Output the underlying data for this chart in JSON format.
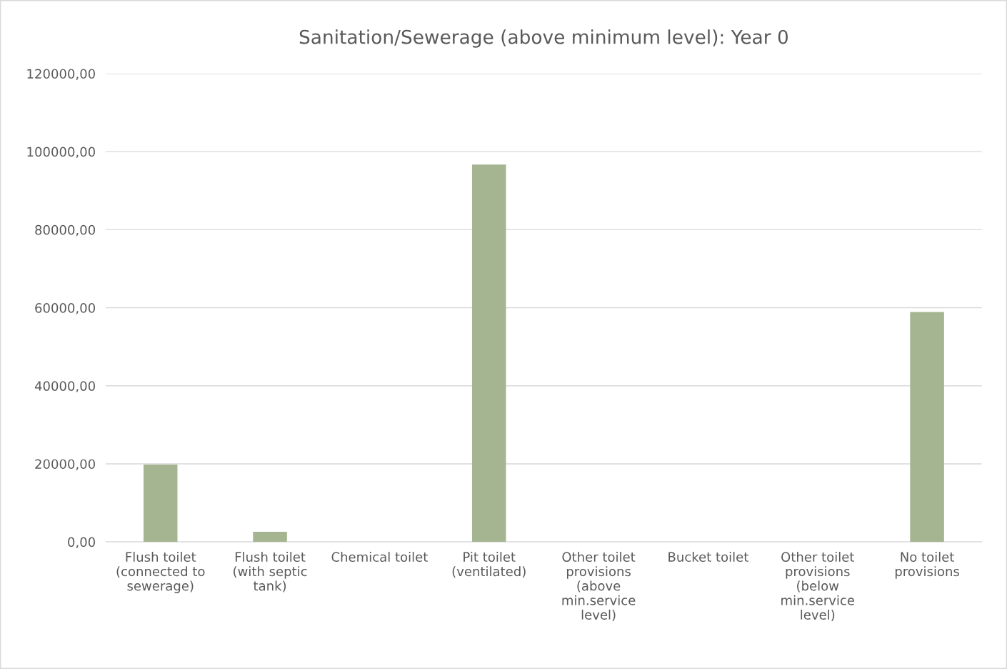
{
  "chart_data": {
    "type": "bar",
    "title": "Sanitation/Sewerage (above minimum level): Year 0",
    "categories": [
      "Flush toilet\n(connected to\nsewerage)",
      "Flush toilet\n(with septic\ntank)",
      "Chemical toilet",
      "Pit toilet\n(ventilated)",
      "Other toilet\nprovisions\n(above\nmin.service\nlevel)",
      "Bucket toilet",
      "Other toilet\nprovisions\n(below\nmin.service\nlevel)",
      "No toilet\nprovisions"
    ],
    "values": [
      19800,
      2600,
      0,
      96700,
      0,
      0,
      0,
      58900
    ],
    "color": "#a5b592",
    "ylim": [
      0,
      120000
    ],
    "yticks": [
      {
        "value": 0,
        "label": "0,00"
      },
      {
        "value": 20000,
        "label": "20000,00"
      },
      {
        "value": 40000,
        "label": "40000,00"
      },
      {
        "value": 60000,
        "label": "60000,00"
      },
      {
        "value": 80000,
        "label": "80000,00"
      },
      {
        "value": 100000,
        "label": "100000,00"
      },
      {
        "value": 120000,
        "label": "120000,00"
      }
    ],
    "grid": "y"
  }
}
